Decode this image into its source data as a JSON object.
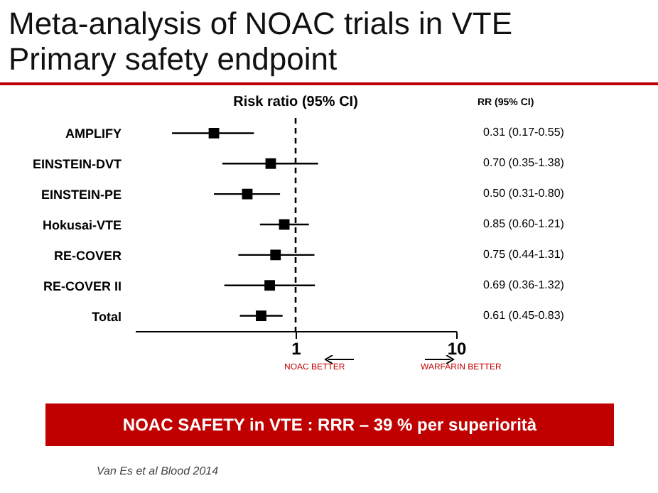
{
  "chart_data": {
    "type": "scatter",
    "orientation": "horizontal",
    "title": "Meta-analysis of NOAC trials in VTE",
    "subtitle": "Primary safety endpoint",
    "categories": [
      "AMPLIFY",
      "EINSTEIN-DVT",
      "EINSTEIN-PE",
      "Hokusai-VTE",
      "RE-COVER",
      "RE-COVER II",
      "Total"
    ],
    "values": [
      0.31,
      0.7,
      0.5,
      0.85,
      0.75,
      0.69,
      0.61
    ],
    "errors": [
      [
        0.17,
        0.55
      ],
      [
        0.35,
        1.38
      ],
      [
        0.31,
        0.8
      ],
      [
        0.6,
        1.21
      ],
      [
        0.44,
        1.31
      ],
      [
        0.36,
        1.32
      ],
      [
        0.45,
        0.83
      ]
    ],
    "value_labels": [
      "0.31 (0.17-0.55)",
      "0.70 (0.35-1.38)",
      "0.50 (0.31-0.80)",
      "0.85 (0.60-1.21)",
      "0.75 (0.44-1.31)",
      "0.69 (0.36-1.32)",
      "0.61 (0.45-0.83)"
    ],
    "color": "#000000",
    "marker": "square",
    "log": "x",
    "xlim": [
      0.1,
      10
    ],
    "xticks": [
      1,
      10
    ],
    "grid": false,
    "ref_lines": [
      {
        "axis": "x",
        "value": 1,
        "line_style": "dashed",
        "color": "#000000"
      }
    ],
    "annotations": [
      "Risk ratio (95% CI)",
      "RR (95% CI)",
      "NOAC BETTER",
      "WARFARIN BETTER",
      "NOAC SAFETY  in  VTE : RRR – 39 % per superiorità",
      "Van Es et al Blood 2014"
    ]
  }
}
